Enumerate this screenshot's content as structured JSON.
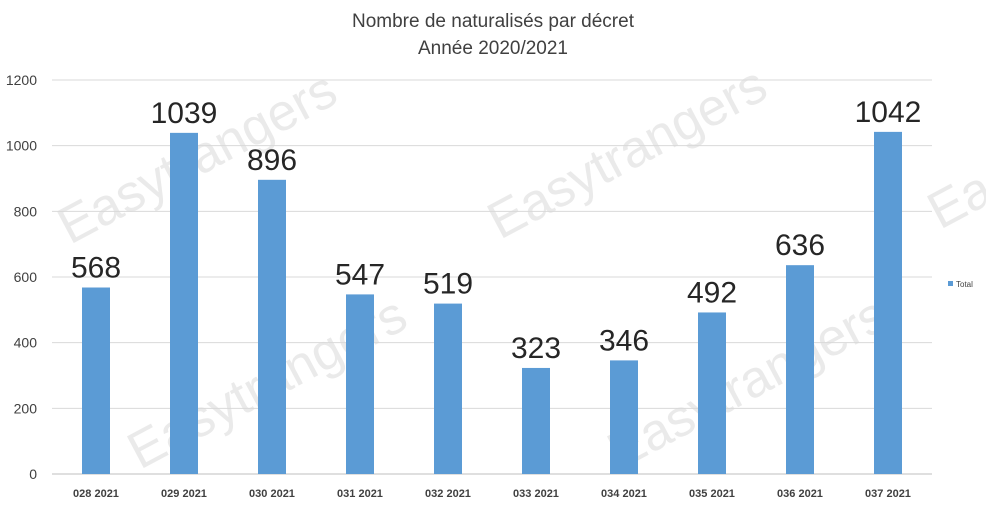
{
  "watermark": {
    "text": "Easytrangers",
    "color": "#cccccc"
  },
  "chart_data": {
    "type": "bar",
    "title": "Nombre de naturalisés par décret",
    "subtitle": "Année 2020/2021",
    "categories": [
      "028 2021",
      "029 2021",
      "030 2021",
      "031 2021",
      "032 2021",
      "033 2021",
      "034 2021",
      "035 2021",
      "036 2021",
      "037 2021"
    ],
    "series": [
      {
        "name": "Total",
        "values": [
          568,
          1039,
          896,
          547,
          519,
          323,
          346,
          492,
          636,
          1042
        ],
        "color": "#5b9bd5"
      }
    ],
    "ylim": [
      0,
      1200
    ],
    "yticks": [
      0,
      200,
      400,
      600,
      800,
      1000,
      1200
    ],
    "grid": true,
    "legend": "right",
    "data_labels": true
  }
}
